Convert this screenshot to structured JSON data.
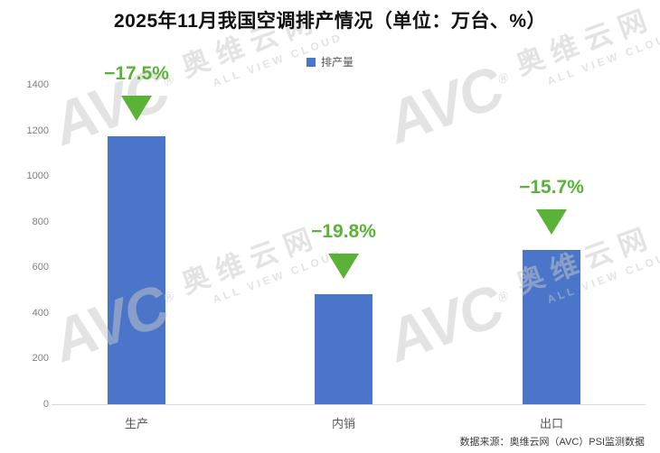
{
  "title": "2025年11月我国空调排产情况（单位：万台、%）",
  "legend": {
    "label": "排产量",
    "color": "#4a75c8"
  },
  "chart_data": {
    "type": "bar",
    "title": "2025年11月我国空调排产情况（单位：万台、%）",
    "unit": "万台、%",
    "categories": [
      "生产",
      "内销",
      "出口"
    ],
    "series": [
      {
        "name": "排产量",
        "values": [
          1175,
          481,
          678
        ]
      }
    ],
    "yoy_change_pct": [
      -17.5,
      -19.8,
      -15.7
    ],
    "change_labels": [
      "−17.5%",
      "−19.8%",
      "−15.7%"
    ],
    "ylim": [
      0,
      1400
    ],
    "yticks": [
      0,
      200,
      400,
      600,
      800,
      1000,
      1200,
      1400
    ],
    "grid": false,
    "legend_position": "top",
    "bar_color": "#4a75c8",
    "change_color": "#5ab336",
    "axis_text_color": "#7f7f7f"
  },
  "footer": {
    "source": "数据来源：奥维云网（AVC）PSI监测数据"
  },
  "watermark": {
    "logo": "AVC",
    "reg": "®",
    "cn": "奥维云网",
    "en": "ALL VIEW CLOUD"
  }
}
